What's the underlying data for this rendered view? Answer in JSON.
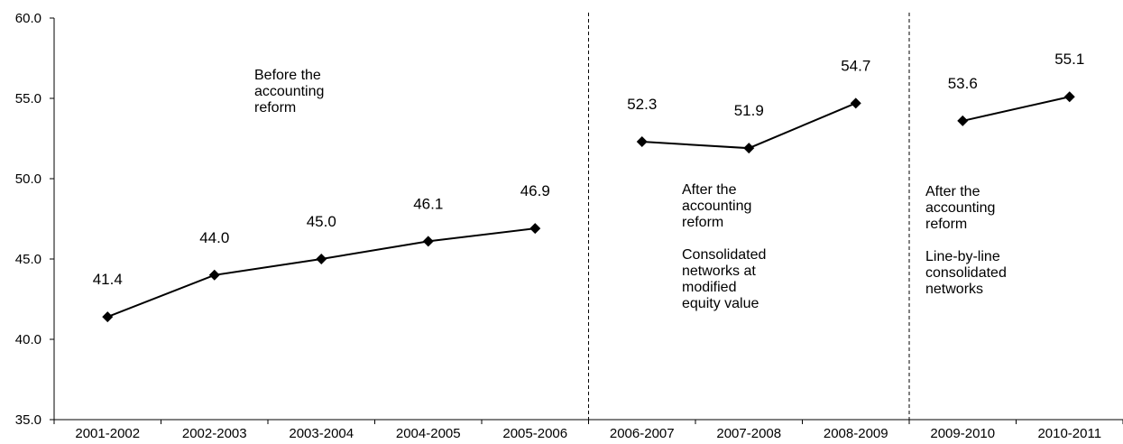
{
  "chart_data": {
    "type": "line",
    "ylim": [
      35.0,
      60.0
    ],
    "yticks": [
      "35.0",
      "40.0",
      "45.0",
      "50.0",
      "55.0",
      "60.0"
    ],
    "categories": [
      "2001-2002",
      "2002-2003",
      "2003-2004",
      "2004-2005",
      "2005-2006",
      "2006-2007",
      "2007-2008",
      "2008-2009",
      "2009-2010",
      "2010-2011"
    ],
    "segments": [
      {
        "categories": [
          "2001-2002",
          "2002-2003",
          "2003-2004",
          "2004-2005",
          "2005-2006"
        ],
        "values": [
          41.4,
          44.0,
          45.0,
          46.1,
          46.9
        ],
        "labels": [
          "41.4",
          "44.0",
          "45.0",
          "46.1",
          "46.9"
        ]
      },
      {
        "categories": [
          "2006-2007",
          "2007-2008",
          "2008-2009"
        ],
        "values": [
          52.3,
          51.9,
          54.7
        ],
        "labels": [
          "52.3",
          "51.9",
          "54.7"
        ]
      },
      {
        "categories": [
          "2009-2010",
          "2010-2011"
        ],
        "values": [
          53.6,
          55.1
        ],
        "labels": [
          "53.6",
          "55.1"
        ]
      }
    ],
    "annotations": [
      {
        "lines": [
          "Before the",
          "accounting",
          "reform"
        ]
      },
      {
        "lines": [
          "After the",
          "accounting",
          "reform",
          "",
          "Consolidated",
          "networks at",
          "modified",
          "equity value"
        ]
      },
      {
        "lines": [
          "After the",
          "accounting",
          "reform",
          "",
          "Line-by-line",
          "consolidated",
          "networks"
        ]
      }
    ],
    "dividers_after": [
      "2005-2006",
      "2008-2009"
    ],
    "grid": false
  }
}
